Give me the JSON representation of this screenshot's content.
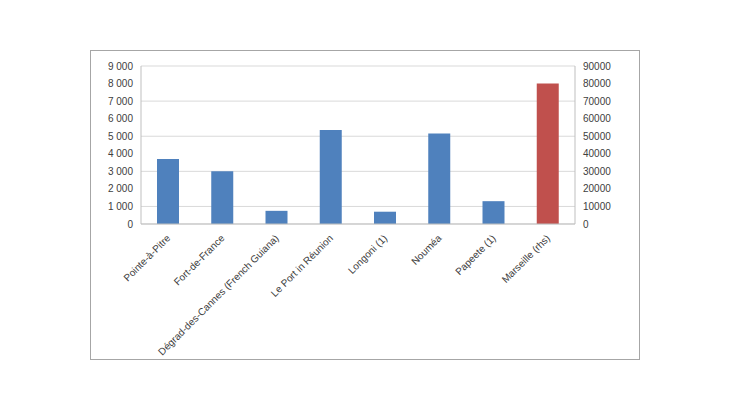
{
  "chart_data": {
    "type": "bar",
    "categories": [
      "Pointe-à-Pitre",
      "Fort-de-France",
      "Dégrad-des-Cannes (French Guiana)",
      "Le Port in Réunion",
      "Longoni (1)",
      "Nouméa",
      "Papeete (1)",
      "Marseille (rhs)"
    ],
    "series": [
      {
        "color": "#4f81bd",
        "values": [
          3700,
          3000,
          750,
          5350,
          700,
          5150,
          1300,
          null
        ]
      },
      {
        "color": "#c0504d",
        "axis": "y2",
        "values": [
          null,
          null,
          null,
          null,
          null,
          null,
          null,
          80000
        ]
      }
    ],
    "ylim": [
      0,
      9000
    ],
    "yticks": [
      0,
      {
        "value": 1000,
        "label": "1 000"
      },
      {
        "value": 2000,
        "label": "2 000"
      },
      {
        "value": 3000,
        "label": "3 000"
      },
      {
        "value": 4000,
        "label": "4 000"
      },
      {
        "value": 5000,
        "label": "5 000"
      },
      {
        "value": 6000,
        "label": "6 000"
      },
      {
        "value": 7000,
        "label": "7 000"
      },
      {
        "value": 8000,
        "label": "8 000"
      },
      {
        "value": 9000,
        "label": "9 000"
      }
    ],
    "y2lim": [
      0,
      90000
    ],
    "y2ticks": [
      0,
      10000,
      20000,
      30000,
      40000,
      50000,
      60000,
      70000,
      80000,
      90000
    ],
    "grid": true
  }
}
